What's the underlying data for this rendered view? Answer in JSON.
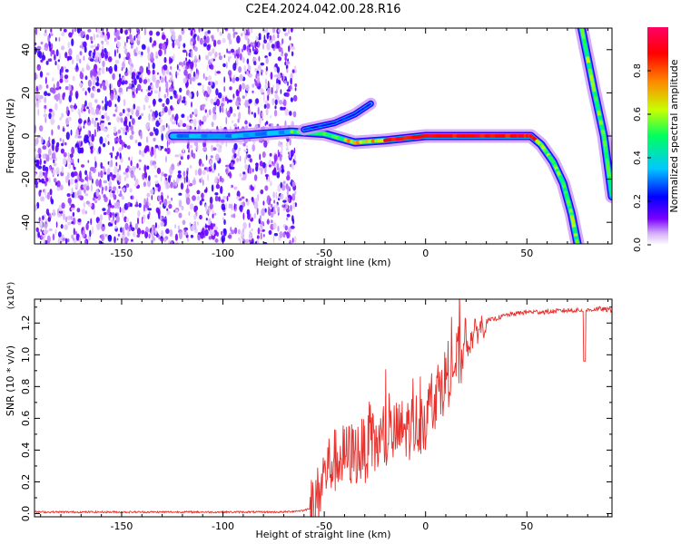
{
  "title": "C2E4.2024.042.00.28.R16",
  "chart_data": [
    {
      "type": "heatmap",
      "xlabel": "Height of straight line (km)",
      "ylabel": "Frequency (Hz)",
      "xlim": [
        -193,
        92
      ],
      "ylim": [
        -50,
        50
      ],
      "xticks": [
        -150,
        -100,
        -50,
        0,
        50
      ],
      "yticks": [
        -40,
        -20,
        0,
        20,
        40
      ],
      "colorbar": {
        "label": "Normalized spectral amplitude",
        "range": [
          0,
          1
        ],
        "ticks": [
          "0.0",
          "0.2",
          "0.4",
          "0.6",
          "0.8"
        ],
        "colors": [
          "#ffffff",
          "#d8b4f8",
          "#7a00ff",
          "#0000ff",
          "#00c8ff",
          "#00ff60",
          "#c8ff00",
          "#ff8800",
          "#ff0000",
          "#ff0066"
        ]
      },
      "features": [
        {
          "name": "noise field",
          "x_range": [
            -193,
            -64
          ],
          "y_range": [
            -50,
            50
          ],
          "amplitude": "0.05-0.25"
        },
        {
          "name": "carrier line",
          "points": [
            [
              -125,
              0
            ],
            [
              -95,
              0
            ],
            [
              -66,
              2
            ],
            [
              -50,
              1
            ],
            [
              -35,
              -3
            ],
            [
              -20,
              -2
            ],
            [
              0,
              0
            ],
            [
              20,
              0
            ],
            [
              45,
              0
            ],
            [
              52,
              0
            ],
            [
              57,
              -4
            ],
            [
              63,
              -12
            ],
            [
              68,
              -22
            ],
            [
              72,
              -36
            ],
            [
              75,
              -50
            ]
          ]
        },
        {
          "name": "upper branch",
          "points": [
            [
              -60,
              3
            ],
            [
              -45,
              6
            ],
            [
              -35,
              10
            ],
            [
              -27,
              15
            ]
          ]
        },
        {
          "name": "high-height tail",
          "points": [
            [
              77,
              50
            ],
            [
              83,
              22
            ],
            [
              88,
              0
            ],
            [
              92,
              -28
            ]
          ]
        }
      ]
    },
    {
      "type": "line",
      "xlabel": "Height of straight line (km)",
      "ylabel": "SNR (10 * v/v)",
      "ylabel_multiplier": "(x10⁴)",
      "xlim": [
        -193,
        92
      ],
      "ylim": [
        -0.02,
        1.35
      ],
      "xticks": [
        -150,
        -100,
        -50,
        0,
        50
      ],
      "yticks": [
        "0.0",
        "0.2",
        "0.4",
        "0.6",
        "0.8",
        "1.0",
        "1.2"
      ],
      "series": [
        {
          "color": "#e8302c",
          "x": [
            -193,
            -100,
            -70,
            -60,
            -56,
            -54,
            -52,
            -50,
            -48,
            -45,
            -42,
            -38,
            -35,
            -30,
            -25,
            -20,
            -15,
            -10,
            -5,
            0,
            5,
            10,
            15,
            20,
            25,
            30,
            40,
            50,
            60,
            70,
            80,
            85,
            92
          ],
          "y": [
            0.01,
            0.01,
            0.01,
            0.02,
            0.04,
            0.07,
            0.15,
            0.25,
            0.3,
            0.33,
            0.35,
            0.37,
            0.38,
            0.4,
            0.43,
            0.46,
            0.5,
            0.53,
            0.56,
            0.6,
            0.75,
            0.85,
            0.95,
            1.05,
            1.15,
            1.21,
            1.25,
            1.27,
            1.27,
            1.28,
            1.28,
            1.29,
            1.28
          ]
        }
      ]
    }
  ]
}
